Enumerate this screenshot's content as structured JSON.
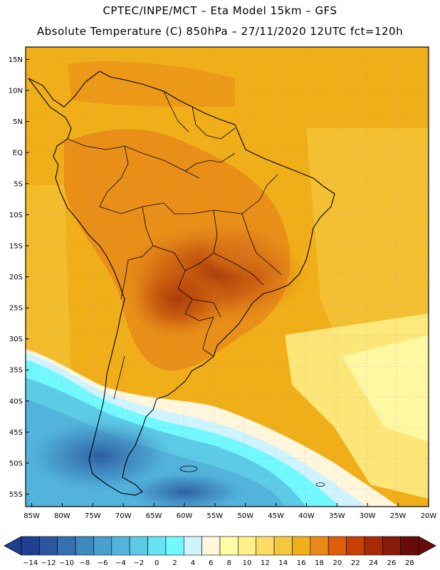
{
  "header": {
    "line1": "CPTEC/INPE/MCT –  Eta Model 15km – GFS",
    "line2": "Absolute Temperature (C) 850hPa – 27/11/2020 12UTC fct=120h"
  },
  "map": {
    "lat_labels": [
      "15N",
      "10N",
      "5N",
      "EQ",
      "5S",
      "10S",
      "15S",
      "20S",
      "25S",
      "30S",
      "35S",
      "40S",
      "45S",
      "50S",
      "55S"
    ],
    "lon_labels": [
      "85W",
      "80W",
      "75W",
      "70W",
      "65W",
      "60W",
      "55W",
      "50W",
      "45W",
      "40W",
      "35W",
      "30W",
      "25W",
      "20W"
    ],
    "lat_range": [
      17,
      -57
    ],
    "lon_range": [
      -86,
      -20
    ]
  },
  "colorbar": {
    "labels": [
      "-14",
      "-12",
      "-10",
      "-8",
      "-6",
      "-4",
      "-2",
      "0",
      "2",
      "4",
      "6",
      "8",
      "10",
      "12",
      "14",
      "16",
      "18",
      "20",
      "22",
      "24",
      "26",
      "28"
    ],
    "colors": [
      "#1f3f8f",
      "#2a579f",
      "#3570b0",
      "#3f88c0",
      "#4aa0cc",
      "#52b4dc",
      "#5ccbe6",
      "#66e2f2",
      "#72f8ff",
      "#cff4ff",
      "#fff6dc",
      "#fffaa6",
      "#fff08a",
      "#fcdc64",
      "#f4c83e",
      "#f0ae18",
      "#e88a18",
      "#df5e0a",
      "#c84004",
      "#a82a04",
      "#8a1a0a",
      "#6a0a0a"
    ]
  }
}
